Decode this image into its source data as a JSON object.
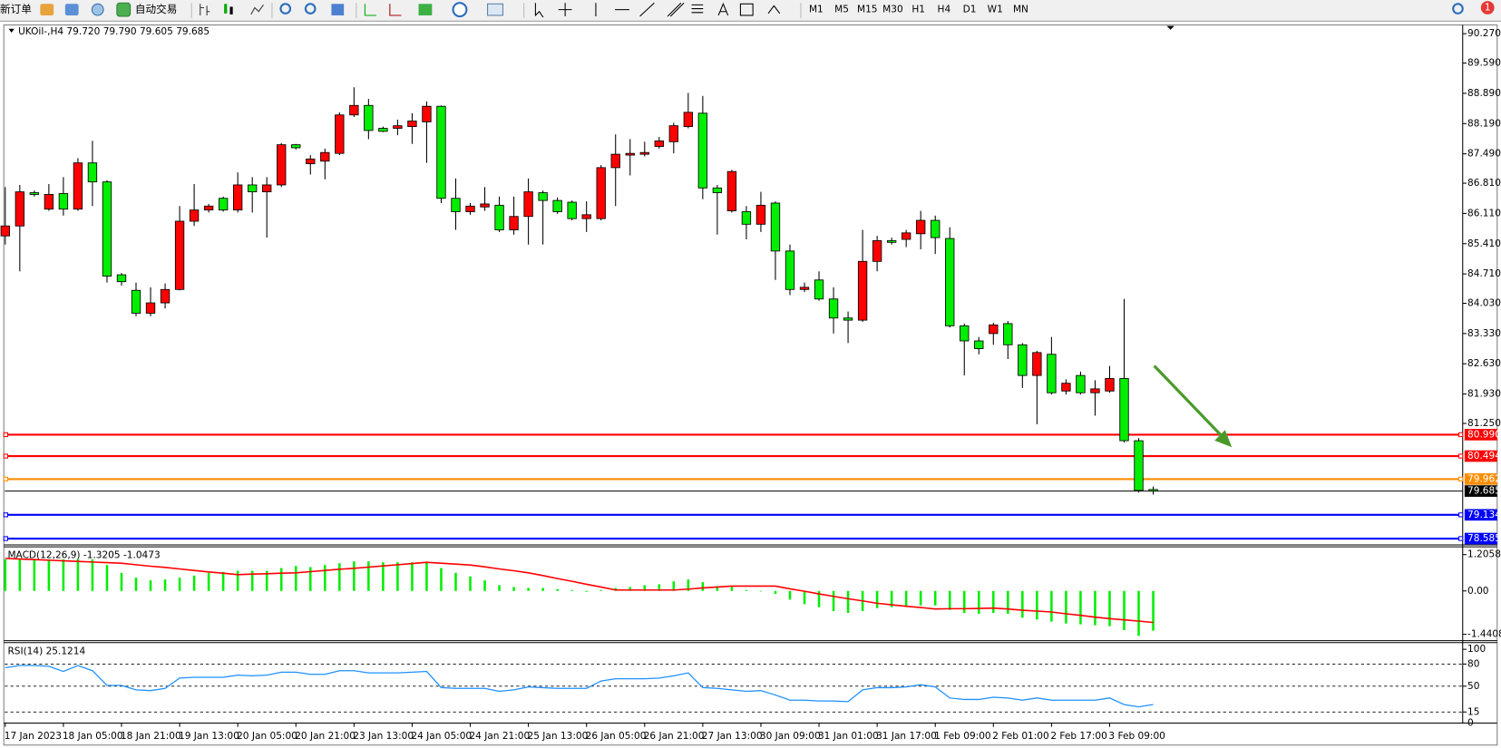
{
  "toolbar": {
    "items": [
      "新订单",
      "自动交易"
    ],
    "timeframes": [
      "M1",
      "M5",
      "M15",
      "M30",
      "H1",
      "H4",
      "D1",
      "W1",
      "MN"
    ],
    "notifications": 1
  },
  "chart": {
    "type": "candlestick",
    "header": "UKOil-,H4 79.720 79.790 79.605 79.685",
    "categories": [
      "17 Jan 2023",
      null,
      null,
      null,
      "18 Jan 05:00",
      null,
      null,
      null,
      "18 Jan 21:00",
      null,
      null,
      null,
      "19 Jan 13:00",
      null,
      null,
      null,
      "20 Jan 05:00",
      null,
      null,
      null,
      "20 Jan 21:00",
      null,
      null,
      null,
      "23 Jan 13:00",
      null,
      null,
      null,
      "24 Jan 05:00",
      null,
      null,
      null,
      "24 Jan 21:00",
      null,
      null,
      null,
      "25 Jan 13:00",
      null,
      null,
      null,
      "26 Jan 05:00",
      null,
      null,
      null,
      "26 Jan 21:00",
      null,
      null,
      null,
      "27 Jan 13:00",
      null,
      null,
      null,
      "30 Jan 09:00",
      null,
      null,
      null,
      "31 Jan 01:00",
      null,
      null,
      null,
      "31 Jan 17:00",
      null,
      null,
      null,
      "1 Feb 09:00",
      null,
      null,
      null,
      "2 Feb 01:00",
      null,
      null,
      null,
      "2 Feb 17:00",
      null,
      null,
      null,
      "3 Feb 09:00",
      null,
      null,
      null
    ],
    "open": [
      85.59,
      85.82,
      86.59,
      86.21,
      86.57,
      86.21,
      87.28,
      86.84,
      84.69,
      84.33,
      83.8,
      84.04,
      84.35,
      85.93,
      86.19,
      86.46,
      86.19,
      86.77,
      86.61,
      86.77,
      87.7,
      87.26,
      87.32,
      87.5,
      88.39,
      88.61,
      88.08,
      88.08,
      88.12,
      88.23,
      88.59,
      86.46,
      86.15,
      86.26,
      86.3,
      85.73,
      86.04,
      86.59,
      86.41,
      86.37,
      85.99,
      85.99,
      87.17,
      87.46,
      87.48,
      87.66,
      87.77,
      88.12,
      88.43,
      86.7,
      86.17,
      86.15,
      85.86,
      86.35,
      85.24,
      84.35,
      84.57,
      84.13,
      83.69,
      83.64,
      85.0,
      85.48,
      85.51,
      85.64,
      85.95,
      85.53,
      83.51,
      83.16,
      83.33,
      83.56,
      83.07,
      82.36,
      82.85,
      82.0,
      82.36,
      81.96,
      82.0,
      82.29,
      80.85,
      79.72
    ],
    "high": [
      86.72,
      86.77,
      86.64,
      86.79,
      86.95,
      87.39,
      87.79,
      86.88,
      84.73,
      84.51,
      84.4,
      84.49,
      86.28,
      86.79,
      86.33,
      86.5,
      87.06,
      86.95,
      86.95,
      87.74,
      87.72,
      87.46,
      87.61,
      88.45,
      89.03,
      88.76,
      88.12,
      88.28,
      88.43,
      88.7,
      88.61,
      86.92,
      86.35,
      86.72,
      86.5,
      86.5,
      86.92,
      86.64,
      86.48,
      86.41,
      86.39,
      87.23,
      87.94,
      87.83,
      87.77,
      87.88,
      88.21,
      88.9,
      88.83,
      86.77,
      87.12,
      86.28,
      86.61,
      86.39,
      85.39,
      84.51,
      84.77,
      84.4,
      83.84,
      85.73,
      85.59,
      85.55,
      85.73,
      86.17,
      86.06,
      85.79,
      83.56,
      83.25,
      83.58,
      83.62,
      83.11,
      82.93,
      83.25,
      82.27,
      82.45,
      82.25,
      82.58,
      84.13,
      80.91,
      79.79
    ],
    "low": [
      85.39,
      84.77,
      86.5,
      86.17,
      86.06,
      86.17,
      86.28,
      84.51,
      84.44,
      83.73,
      83.73,
      83.91,
      84.33,
      85.82,
      86.13,
      86.15,
      86.13,
      86.13,
      85.55,
      86.72,
      87.59,
      87.01,
      86.9,
      87.46,
      88.34,
      87.83,
      87.99,
      87.92,
      87.72,
      87.28,
      86.35,
      85.73,
      86.08,
      86.17,
      85.68,
      85.62,
      85.39,
      85.39,
      86.1,
      85.95,
      85.68,
      85.95,
      86.28,
      86.99,
      87.43,
      87.61,
      87.5,
      88.08,
      86.44,
      85.62,
      86.13,
      85.51,
      85.68,
      84.57,
      84.22,
      84.29,
      84.09,
      83.33,
      83.11,
      83.6,
      84.77,
      85.39,
      85.33,
      85.28,
      85.17,
      83.47,
      82.36,
      82.85,
      83.07,
      82.74,
      82.07,
      81.23,
      81.92,
      81.92,
      81.92,
      81.43,
      81.96,
      80.81,
      79.65,
      79.605
    ],
    "close": [
      85.82,
      86.61,
      86.55,
      86.55,
      86.21,
      87.28,
      86.84,
      84.66,
      84.53,
      83.8,
      84.04,
      84.35,
      85.93,
      86.19,
      86.28,
      86.19,
      86.77,
      86.61,
      86.77,
      87.7,
      87.63,
      87.37,
      87.52,
      88.39,
      88.61,
      88.03,
      88.01,
      88.14,
      88.25,
      88.59,
      86.46,
      86.15,
      86.28,
      86.33,
      85.73,
      86.04,
      86.61,
      86.41,
      86.15,
      85.99,
      86.08,
      87.17,
      87.48,
      87.5,
      87.52,
      87.79,
      88.14,
      88.45,
      86.7,
      86.59,
      87.08,
      85.86,
      86.3,
      85.24,
      84.35,
      84.4,
      84.13,
      83.69,
      83.64,
      85.0,
      85.48,
      85.44,
      85.66,
      85.95,
      85.55,
      83.51,
      83.16,
      82.98,
      83.53,
      83.07,
      82.36,
      82.89,
      81.96,
      82.18,
      81.96,
      82.05,
      82.29,
      80.85,
      79.7,
      79.685
    ],
    "up_color": "#ff0000",
    "down_color": "#00ee00",
    "ylim": [
      78.46,
      90.45
    ],
    "yticks": [
      {
        "value": 90.27,
        "label": "90.270"
      },
      {
        "value": 89.59,
        "label": "89.590"
      },
      {
        "value": 88.89,
        "label": "88.890"
      },
      {
        "value": 88.19,
        "label": "88.190"
      },
      {
        "value": 87.49,
        "label": "87.490"
      },
      {
        "value": 86.81,
        "label": "86.810"
      },
      {
        "value": 86.11,
        "label": "86.110"
      },
      {
        "value": 85.41,
        "label": "85.410"
      },
      {
        "value": 84.71,
        "label": "84.710"
      },
      {
        "value": 84.03,
        "label": "84.030"
      },
      {
        "value": 83.33,
        "label": "83.330"
      },
      {
        "value": 82.63,
        "label": "82.630"
      },
      {
        "value": 81.93,
        "label": "81.930"
      },
      {
        "value": 81.25,
        "label": "81.250"
      }
    ],
    "levels": [
      {
        "value": 80.99,
        "label": "80.990",
        "color": "#ff0000"
      },
      {
        "value": 80.494,
        "label": "80.494",
        "color": "#ff0000"
      },
      {
        "value": 79.962,
        "label": "79.962",
        "color": "#ff8c00"
      },
      {
        "value": 79.685,
        "label": "79.685",
        "color": "#000000"
      },
      {
        "value": 79.134,
        "label": "79.134",
        "color": "#0000ff"
      },
      {
        "value": 78.585,
        "label": "78.585",
        "color": "#0000ff"
      }
    ],
    "macd": {
      "label": "MACD(12,26,9) -1.3205 -1.0473",
      "histogram": [
        1.05,
        1.05,
        1.05,
        1.05,
        1.05,
        1.05,
        1.05,
        0.86,
        0.6,
        0.44,
        0.35,
        0.38,
        0.44,
        0.51,
        0.6,
        0.63,
        0.67,
        0.67,
        0.67,
        0.76,
        0.83,
        0.79,
        0.86,
        0.92,
        0.98,
        0.98,
        0.95,
        0.95,
        0.95,
        0.95,
        0.76,
        0.6,
        0.48,
        0.35,
        0.19,
        0.13,
        0.1,
        0.1,
        0.06,
        0.03,
        -0.03,
        0.03,
        0.1,
        0.13,
        0.19,
        0.22,
        0.32,
        0.38,
        0.29,
        0.16,
        0.13,
        0.03,
        -0.02,
        -0.1,
        -0.29,
        -0.44,
        -0.54,
        -0.67,
        -0.73,
        -0.67,
        -0.57,
        -0.54,
        -0.51,
        -0.48,
        -0.48,
        -0.63,
        -0.73,
        -0.76,
        -0.73,
        -0.76,
        -0.89,
        -0.95,
        -1.02,
        -1.08,
        -1.11,
        -1.14,
        -1.17,
        -1.3,
        -1.49,
        -1.3205
      ],
      "signal": [
        1.08,
        1.06,
        1.04,
        1.02,
        1.0,
        0.98,
        0.96,
        0.94,
        0.92,
        0.87,
        0.82,
        0.78,
        0.73,
        0.68,
        0.63,
        0.59,
        0.54,
        0.56,
        0.57,
        0.59,
        0.6,
        0.64,
        0.68,
        0.72,
        0.75,
        0.79,
        0.83,
        0.87,
        0.91,
        0.95,
        0.92,
        0.89,
        0.86,
        0.8,
        0.73,
        0.67,
        0.6,
        0.51,
        0.41,
        0.32,
        0.22,
        0.13,
        0.03,
        0.03,
        0.03,
        0.03,
        0.03,
        0.06,
        0.1,
        0.13,
        0.16,
        0.16,
        0.16,
        0.16,
        0.07,
        -0.01,
        -0.1,
        -0.18,
        -0.26,
        -0.33,
        -0.41,
        -0.46,
        -0.51,
        -0.55,
        -0.6,
        -0.59,
        -0.59,
        -0.58,
        -0.57,
        -0.6,
        -0.64,
        -0.67,
        -0.7,
        -0.76,
        -0.81,
        -0.87,
        -0.92,
        -0.96,
        -1.0,
        -1.0473
      ],
      "hist_color": "#00ee00",
      "signal_color": "#ff0000",
      "ylim": [
        -1.62,
        1.4
      ],
      "yticks": [
        1.2058,
        {
          "value": 0,
          "label": "0.00"
        },
        -1.4408
      ]
    },
    "rsi": {
      "label": "RSI(14) 25.1214",
      "values": [
        75,
        78,
        78,
        77,
        70,
        78,
        71,
        51,
        51,
        45,
        44,
        47,
        61,
        62,
        62,
        62,
        65,
        64,
        65,
        69,
        69,
        66,
        66,
        71,
        71,
        68,
        68,
        68,
        69,
        70,
        48,
        47,
        47,
        47,
        43,
        45,
        49,
        48,
        47,
        47,
        47,
        57,
        60,
        60,
        60,
        61,
        64,
        68,
        48,
        47,
        45,
        43,
        44,
        38,
        31,
        31,
        30,
        30,
        29,
        45,
        48,
        48,
        49,
        52,
        49,
        34,
        32,
        32,
        35,
        34,
        31,
        34,
        31,
        31,
        31,
        31,
        34,
        25,
        22,
        25.1214
      ],
      "color": "#1e90ff",
      "ylim": [
        0,
        100
      ],
      "yticks": [
        100,
        80,
        50,
        15,
        0
      ],
      "levels": [
        80,
        50,
        15
      ]
    }
  }
}
